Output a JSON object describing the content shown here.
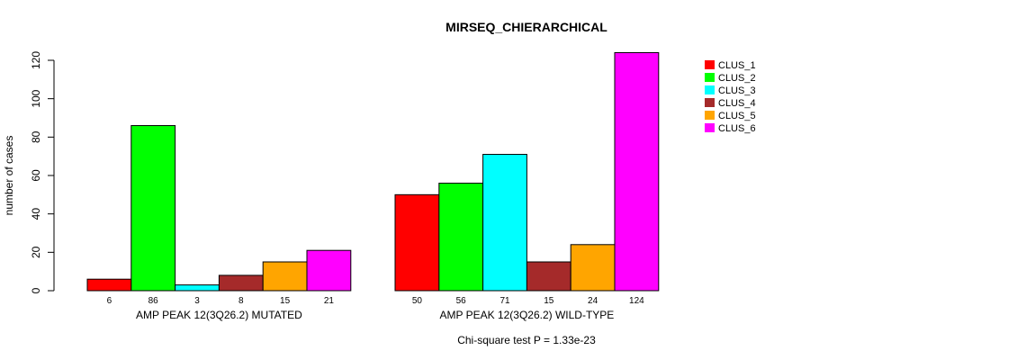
{
  "chart_data": {
    "type": "bar",
    "title": "MIRSEQ_CHIERARCHICAL",
    "xlabel": "",
    "ylabel": "number of cases",
    "ylim": [
      0,
      120
    ],
    "yticks": [
      0,
      20,
      40,
      60,
      80,
      100,
      120
    ],
    "ytick_labels": [
      "0",
      "20",
      "40",
      "60",
      "80",
      "100",
      "120"
    ],
    "groups": [
      "AMP PEAK 12(3Q26.2) MUTATED",
      "AMP PEAK 12(3Q26.2) WILD-TYPE"
    ],
    "series": [
      {
        "name": "CLUS_1",
        "color": "#FF0000",
        "values": [
          6,
          50
        ],
        "labels": [
          "6",
          "50"
        ]
      },
      {
        "name": "CLUS_2",
        "color": "#00FF00",
        "values": [
          86,
          56
        ],
        "labels": [
          "86",
          "56"
        ]
      },
      {
        "name": "CLUS_3",
        "color": "#00FFFF",
        "values": [
          3,
          71
        ],
        "labels": [
          "3",
          "71"
        ]
      },
      {
        "name": "CLUS_4",
        "color": "#A52A2A",
        "values": [
          8,
          15
        ],
        "labels": [
          "8",
          "15"
        ]
      },
      {
        "name": "CLUS_5",
        "color": "#FFA500",
        "values": [
          15,
          24
        ],
        "labels": [
          "15",
          "24"
        ]
      },
      {
        "name": "CLUS_6",
        "color": "#FF00FF",
        "values": [
          21,
          124
        ],
        "labels": [
          "21",
          "124"
        ]
      }
    ],
    "legend_position": "top-right",
    "annotation": "Chi-square test P = 1.33e-23",
    "grid": false
  }
}
